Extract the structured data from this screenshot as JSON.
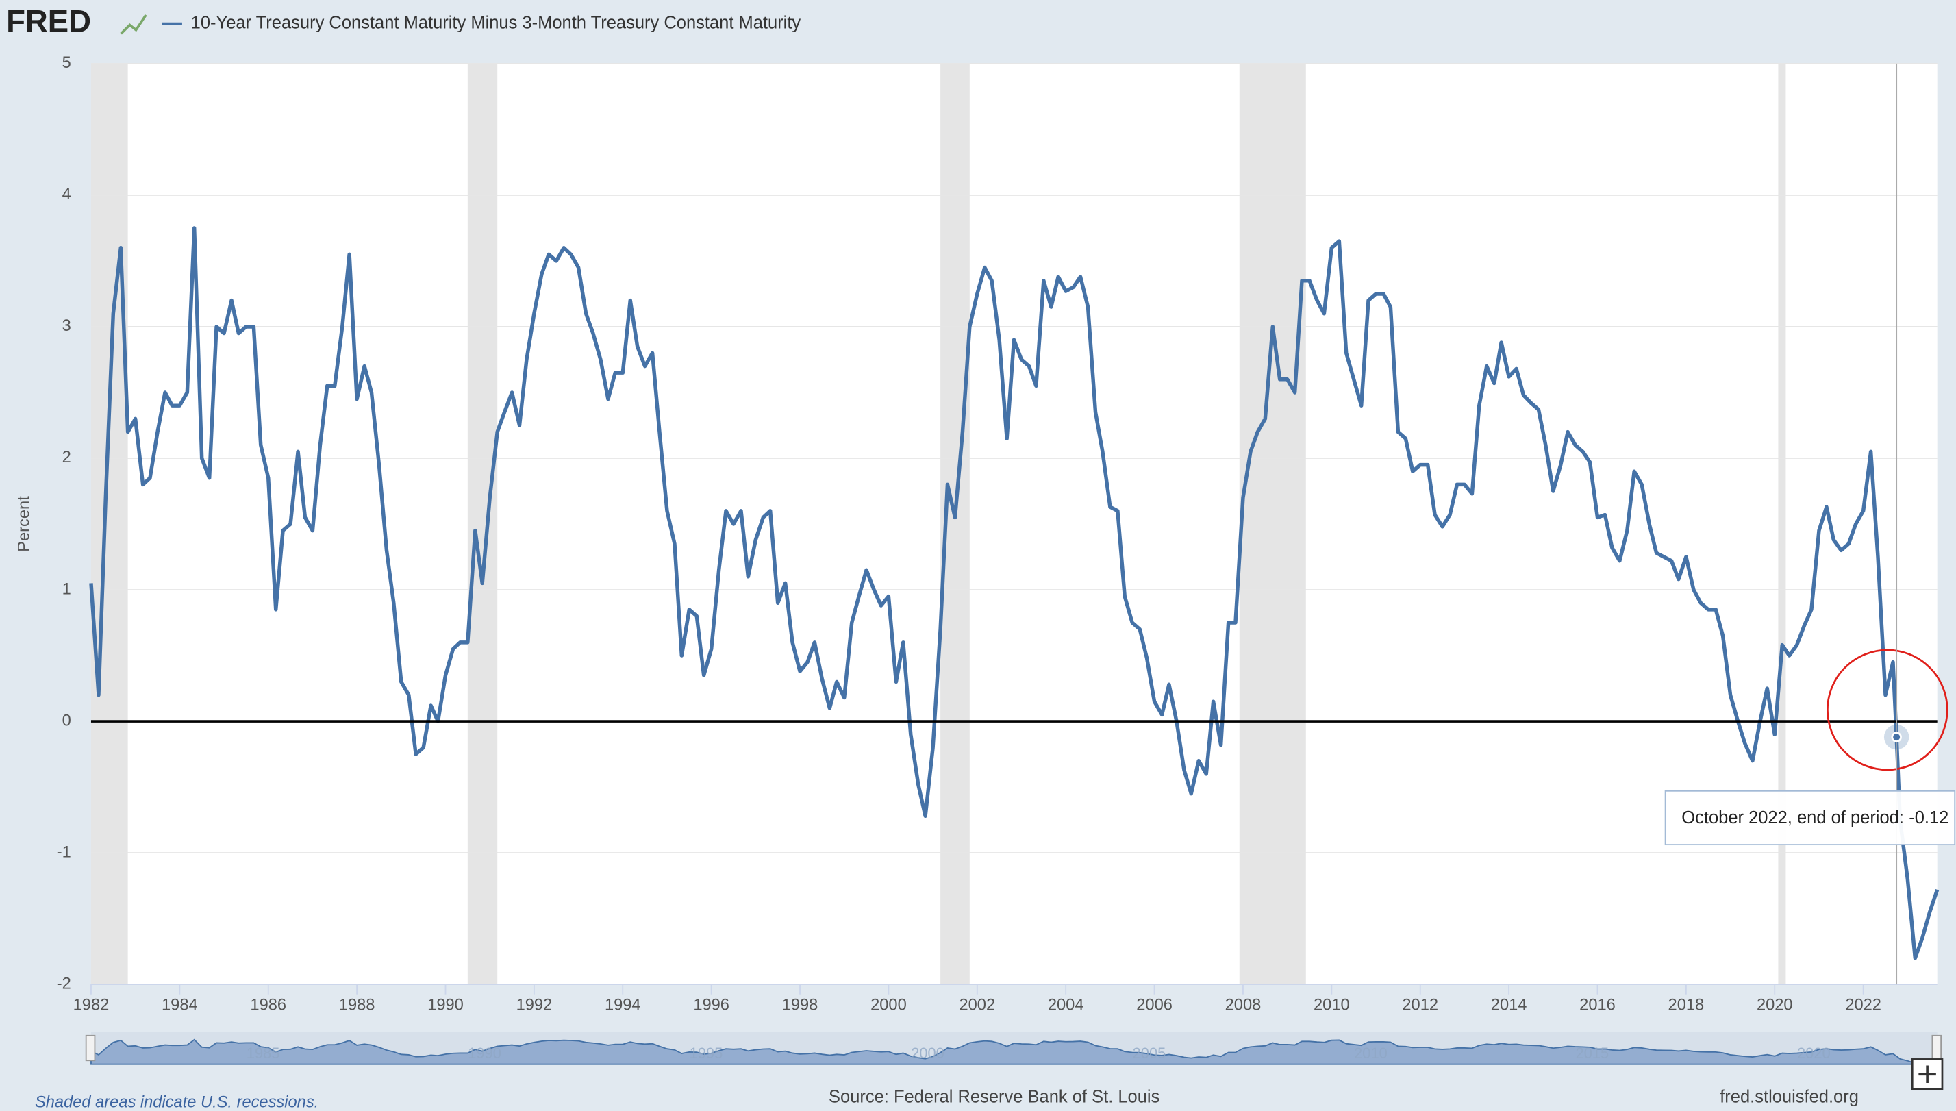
{
  "chart_data": {
    "type": "line",
    "logo": "FRED",
    "ylabel": "Percent",
    "note": "Shaded areas indicate U.S. recessions.",
    "source": "Source: Federal Reserve Bank of St. Louis",
    "url": "fred.stlouisfed.org",
    "tooltip_label": "October 2022, end of period:",
    "tooltip_index": 245,
    "xlim": [
      1982,
      2023.67
    ],
    "xticks": [
      1982,
      1984,
      1986,
      1988,
      1990,
      1992,
      1994,
      1996,
      1998,
      2000,
      2002,
      2004,
      2006,
      2008,
      2010,
      2012,
      2014,
      2016,
      2018,
      2020,
      2022
    ],
    "ylim": [
      -2,
      5
    ],
    "yticks": [
      -2,
      -1,
      0,
      1,
      2,
      3,
      4,
      5
    ],
    "grid": true,
    "zero_line": true,
    "navigator_ticks": [
      1985,
      1990,
      1995,
      2000,
      2005,
      2010,
      2015,
      2020
    ],
    "recessions": [
      {
        "start": 1982,
        "end": 1982.83
      },
      {
        "start": 1990.5,
        "end": 1991.17
      },
      {
        "start": 2001.17,
        "end": 2001.83
      },
      {
        "start": 2007.92,
        "end": 2009.42
      },
      {
        "start": 2020.08,
        "end": 2020.25
      }
    ],
    "x": [
      1982,
      1982.17,
      1982.33,
      1982.5,
      1982.67,
      1982.83,
      1983,
      1983.17,
      1983.33,
      1983.5,
      1983.67,
      1983.83,
      1984,
      1984.17,
      1984.33,
      1984.5,
      1984.67,
      1984.83,
      1985,
      1985.17,
      1985.33,
      1985.5,
      1985.67,
      1985.83,
      1986,
      1986.17,
      1986.33,
      1986.5,
      1986.67,
      1986.83,
      1987,
      1987.17,
      1987.33,
      1987.5,
      1987.67,
      1987.83,
      1988,
      1988.17,
      1988.33,
      1988.5,
      1988.67,
      1988.83,
      1989,
      1989.17,
      1989.33,
      1989.5,
      1989.67,
      1989.83,
      1990,
      1990.17,
      1990.33,
      1990.5,
      1990.67,
      1990.83,
      1991,
      1991.17,
      1991.33,
      1991.5,
      1991.67,
      1991.83,
      1992,
      1992.17,
      1992.33,
      1992.5,
      1992.67,
      1992.83,
      1993,
      1993.17,
      1993.33,
      1993.5,
      1993.67,
      1993.83,
      1994,
      1994.17,
      1994.33,
      1994.5,
      1994.67,
      1994.83,
      1995,
      1995.17,
      1995.33,
      1995.5,
      1995.67,
      1995.83,
      1996,
      1996.17,
      1996.33,
      1996.5,
      1996.67,
      1996.83,
      1997,
      1997.17,
      1997.33,
      1997.5,
      1997.67,
      1997.83,
      1998,
      1998.17,
      1998.33,
      1998.5,
      1998.67,
      1998.83,
      1999,
      1999.17,
      1999.33,
      1999.5,
      1999.67,
      1999.83,
      2000,
      2000.17,
      2000.33,
      2000.5,
      2000.67,
      2000.83,
      2001,
      2001.17,
      2001.33,
      2001.5,
      2001.67,
      2001.83,
      2002,
      2002.17,
      2002.33,
      2002.5,
      2002.67,
      2002.83,
      2003,
      2003.17,
      2003.33,
      2003.5,
      2003.67,
      2003.83,
      2004,
      2004.17,
      2004.33,
      2004.5,
      2004.67,
      2004.83,
      2005,
      2005.17,
      2005.33,
      2005.5,
      2005.67,
      2005.83,
      2006,
      2006.17,
      2006.33,
      2006.5,
      2006.67,
      2006.83,
      2007,
      2007.17,
      2007.33,
      2007.5,
      2007.67,
      2007.83,
      2008,
      2008.17,
      2008.33,
      2008.5,
      2008.67,
      2008.83,
      2009,
      2009.17,
      2009.33,
      2009.5,
      2009.67,
      2009.83,
      2010,
      2010.17,
      2010.33,
      2010.5,
      2010.67,
      2010.83,
      2011,
      2011.17,
      2011.33,
      2011.5,
      2011.67,
      2011.83,
      2012,
      2012.17,
      2012.33,
      2012.5,
      2012.67,
      2012.83,
      2013,
      2013.17,
      2013.33,
      2013.5,
      2013.67,
      2013.83,
      2014,
      2014.17,
      2014.33,
      2014.5,
      2014.67,
      2014.83,
      2015,
      2015.17,
      2015.33,
      2015.5,
      2015.67,
      2015.83,
      2016,
      2016.17,
      2016.33,
      2016.5,
      2016.67,
      2016.83,
      2017,
      2017.17,
      2017.33,
      2017.5,
      2017.67,
      2017.83,
      2018,
      2018.17,
      2018.33,
      2018.5,
      2018.67,
      2018.83,
      2019,
      2019.17,
      2019.33,
      2019.5,
      2019.67,
      2019.83,
      2020,
      2020.17,
      2020.33,
      2020.5,
      2020.67,
      2020.83,
      2021,
      2021.17,
      2021.33,
      2021.5,
      2021.67,
      2021.83,
      2022,
      2022.17,
      2022.33,
      2022.5,
      2022.67,
      2022.75,
      2022.83,
      2023,
      2023.17,
      2023.33,
      2023.5,
      2023.67
    ],
    "series": [
      {
        "name": "10-Year Treasury Constant Maturity Minus 3-Month Treasury Constant Maturity",
        "color": "#4572a7",
        "values": [
          1.05,
          0.2,
          1.7,
          3.1,
          3.6,
          2.2,
          2.3,
          1.8,
          1.85,
          2.2,
          2.5,
          2.4,
          2.4,
          2.5,
          3.75,
          2.0,
          1.85,
          3.0,
          2.95,
          3.2,
          2.95,
          3.0,
          3.0,
          2.1,
          1.85,
          0.85,
          1.45,
          1.5,
          2.05,
          1.55,
          1.45,
          2.1,
          2.55,
          2.55,
          3.0,
          3.55,
          2.45,
          2.7,
          2.5,
          1.95,
          1.3,
          0.9,
          0.3,
          0.2,
          -0.25,
          -0.2,
          0.12,
          0.0,
          0.35,
          0.55,
          0.6,
          0.6,
          1.45,
          1.05,
          1.7,
          2.2,
          2.35,
          2.5,
          2.25,
          2.75,
          3.1,
          3.4,
          3.55,
          3.5,
          3.6,
          3.55,
          3.45,
          3.1,
          2.95,
          2.75,
          2.45,
          2.65,
          2.65,
          3.2,
          2.85,
          2.7,
          2.8,
          2.2,
          1.6,
          1.35,
          0.5,
          0.85,
          0.8,
          0.35,
          0.55,
          1.15,
          1.6,
          1.5,
          1.6,
          1.1,
          1.38,
          1.55,
          1.6,
          0.9,
          1.05,
          0.6,
          0.38,
          0.45,
          0.6,
          0.32,
          0.1,
          0.3,
          0.18,
          0.75,
          0.95,
          1.15,
          1.0,
          0.88,
          0.95,
          0.3,
          0.6,
          -0.1,
          -0.48,
          -0.72,
          -0.2,
          0.7,
          1.8,
          1.55,
          2.2,
          3.0,
          3.25,
          3.45,
          3.35,
          2.9,
          2.15,
          2.9,
          2.75,
          2.7,
          2.55,
          3.35,
          3.15,
          3.38,
          3.27,
          3.3,
          3.38,
          3.15,
          2.35,
          2.05,
          1.63,
          1.6,
          0.95,
          0.75,
          0.7,
          0.48,
          0.15,
          0.05,
          0.28,
          0.0,
          -0.37,
          -0.55,
          -0.3,
          -0.4,
          0.15,
          -0.18,
          0.75,
          0.75,
          1.7,
          2.05,
          2.2,
          2.3,
          3.0,
          2.6,
          2.6,
          2.5,
          3.35,
          3.35,
          3.2,
          3.1,
          3.6,
          3.65,
          2.8,
          2.6,
          2.4,
          3.2,
          3.25,
          3.25,
          3.15,
          2.2,
          2.15,
          1.9,
          1.95,
          1.95,
          1.57,
          1.48,
          1.57,
          1.8,
          1.8,
          1.73,
          2.4,
          2.7,
          2.57,
          2.88,
          2.62,
          2.68,
          2.48,
          2.42,
          2.37,
          2.1,
          1.75,
          1.95,
          2.2,
          2.1,
          2.05,
          1.97,
          1.55,
          1.57,
          1.32,
          1.22,
          1.45,
          1.9,
          1.8,
          1.5,
          1.28,
          1.25,
          1.22,
          1.08,
          1.25,
          1.0,
          0.9,
          0.85,
          0.85,
          0.65,
          0.2,
          0.0,
          -0.17,
          -0.3,
          0.0,
          0.25,
          -0.1,
          0.58,
          0.5,
          0.58,
          0.73,
          0.85,
          1.45,
          1.63,
          1.38,
          1.3,
          1.35,
          1.5,
          1.6,
          2.05,
          1.25,
          0.2,
          0.45,
          -0.12,
          -0.75,
          -1.2,
          -1.8,
          -1.65,
          -1.45,
          -1.28
        ]
      }
    ]
  }
}
